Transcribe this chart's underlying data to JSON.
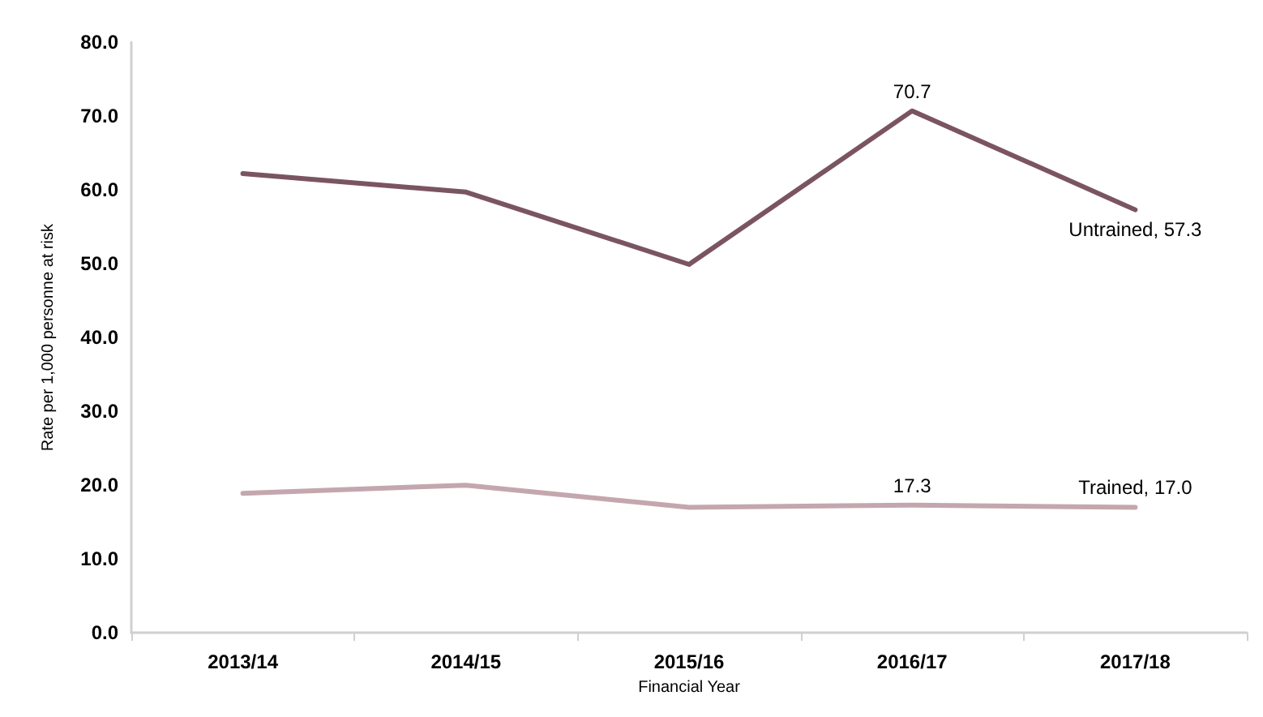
{
  "chart_data": {
    "type": "line",
    "xlabel": "Financial Year",
    "ylabel": "Rate per 1,000 personne at risk",
    "categories": [
      "2013/14",
      "2014/15",
      "2015/16",
      "2016/17",
      "2017/18"
    ],
    "ylim": [
      0,
      80
    ],
    "yticks": [
      {
        "value": 0,
        "label": "0.0"
      },
      {
        "value": 10,
        "label": "10.0"
      },
      {
        "value": 20,
        "label": "20.0"
      },
      {
        "value": 30,
        "label": "30.0"
      },
      {
        "value": 40,
        "label": "40.0"
      },
      {
        "value": 50,
        "label": "50.0"
      },
      {
        "value": 60,
        "label": "60.0"
      },
      {
        "value": 70,
        "label": "70.0"
      },
      {
        "value": 80,
        "label": "80.0"
      }
    ],
    "grid": false,
    "legend": false,
    "marker": "none",
    "line_style": "solid",
    "series": [
      {
        "name": "Untrained",
        "color": "#7a5561",
        "values": [
          62.2,
          59.7,
          49.9,
          70.7,
          57.3
        ],
        "value_labels": [
          null,
          null,
          null,
          "70.7",
          ", 57.3"
        ]
      },
      {
        "name": "Trained",
        "color": "#c4a7ae",
        "values": [
          18.9,
          20.0,
          17.0,
          17.3,
          17.0
        ],
        "value_labels": [
          null,
          null,
          null,
          "17.3",
          ", 17.0"
        ]
      }
    ]
  }
}
